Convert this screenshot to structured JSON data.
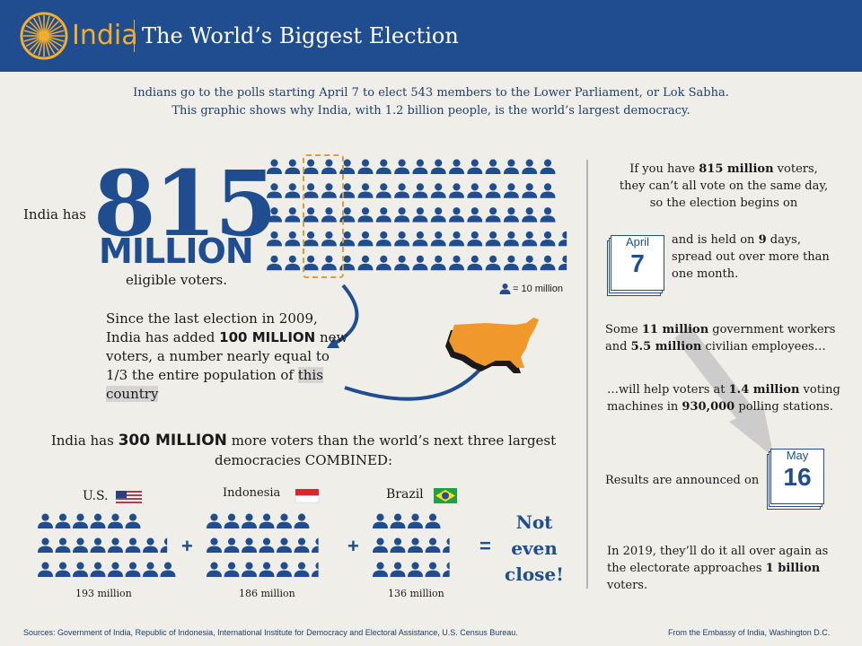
{
  "header": {
    "brand": "India",
    "title": "The World’s Biggest Election",
    "colors": {
      "bar": "#1f4d8f",
      "accent": "#f4ae2d"
    }
  },
  "intro": {
    "line1": "Indians go to the polls starting April 7 to elect 543 members to the Lower Parliament, or Lok Sabha.",
    "line2": "This graphic shows why India, with 1.2 billion people, is the world’s largest democracy."
  },
  "voters": {
    "prefix": "India has",
    "number": "815",
    "unit": "MILLION",
    "suffix": "eligible voters.",
    "legend": "= 10 million",
    "icon_count": 81.5
  },
  "since": {
    "t1": "Since the last election in 2009, India has added ",
    "bold": "100 MILLION",
    "t2": " new voters, a number nearly equal to 1/3 the entire population of ",
    "highlight": "this country"
  },
  "right": {
    "p1_pre": "If you have ",
    "p1_bold": "815 million",
    "p1_post": " voters, they can’t all vote on the same day, so the election begins on",
    "cal1": {
      "month": "April",
      "day": "7"
    },
    "p2_pre": "and is held on ",
    "p2_bold": "9",
    "p2_post": " days, spread out over more than one month.",
    "p3_pre": "Some ",
    "p3_b1": "11 million",
    "p3_mid": " government workers and ",
    "p3_b2": "5.5 million",
    "p3_post": " civilian employees…",
    "p4_pre": "…will help voters at ",
    "p4_b1": "1.4 million",
    "p4_mid": " voting machines in ",
    "p4_b2": "930,000",
    "p4_post": " polling stations.",
    "p5": "Results are announced on",
    "cal2": {
      "month": "May",
      "day": "16"
    },
    "p6_pre": "In 2019, they’ll do it all over again as the electorate approaches ",
    "p6_bold": "1 billion",
    "p6_post": " voters."
  },
  "compare": {
    "h_pre": "India has ",
    "h_bold": "300 MILLION",
    "h_post": " more voters than the world’s next three largest democracies COMBINED:",
    "countries": [
      {
        "name": "U.S.",
        "caption": "193 million",
        "flag": "us-flag-icon"
      },
      {
        "name": "Indonesia",
        "caption": "186 million",
        "flag": "indonesia-flag-icon"
      },
      {
        "name": "Brazil",
        "caption": "136 million",
        "flag": "brazil-flag-icon"
      }
    ],
    "plus": "+",
    "equals": "=",
    "conclusion": "Not even close!"
  },
  "footer": {
    "sources": "Sources: Government of India, Republic of Indonesia, International Institute for Democracy and Electoral Assistance, U.S. Census Bureau.",
    "from": "From the Embassy of India, Washington D.C."
  }
}
